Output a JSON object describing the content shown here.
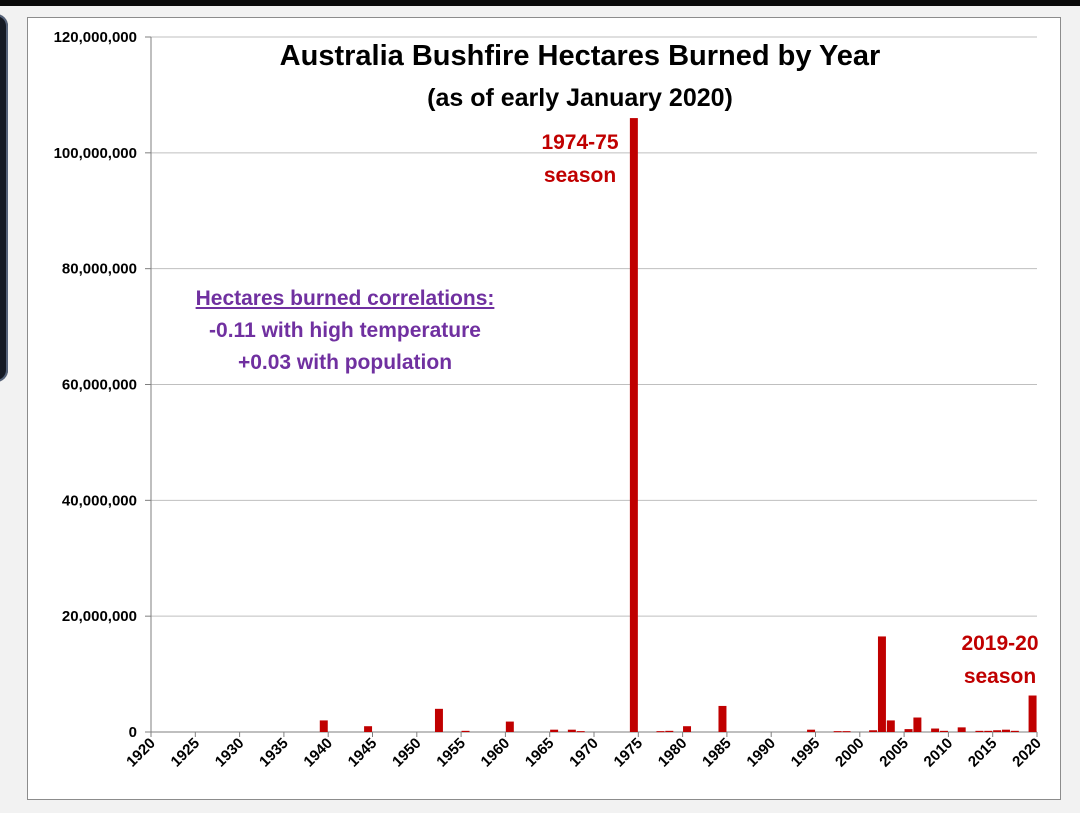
{
  "chart_data": {
    "type": "bar",
    "title": "Australia Bushfire Hectares Burned by Year",
    "subtitle": "(as of early January 2020)",
    "xlabel": "",
    "ylabel": "",
    "ylim": [
      0,
      120000000
    ],
    "yticks": [
      0,
      20000000,
      40000000,
      60000000,
      80000000,
      100000000,
      120000000
    ],
    "ytick_labels": [
      "0",
      "20,000,000",
      "40,000,000",
      "60,000,000",
      "80,000,000",
      "100,000,000",
      "120,000,000"
    ],
    "xlim": [
      1920,
      2020
    ],
    "xticks": [
      1920,
      1925,
      1930,
      1935,
      1940,
      1945,
      1950,
      1955,
      1960,
      1965,
      1970,
      1975,
      1980,
      1985,
      1990,
      1995,
      2000,
      2005,
      2010,
      2015,
      2020
    ],
    "grid": true,
    "legend": "none",
    "bar_color": "#c00000",
    "x": [
      1939,
      1944,
      1952,
      1955,
      1960,
      1965,
      1967,
      1968,
      1974,
      1977,
      1978,
      1980,
      1984,
      1994,
      1997,
      1998,
      2001,
      2002,
      2003,
      2005,
      2006,
      2008,
      2009,
      2011,
      2013,
      2014,
      2015,
      2016,
      2017,
      2019
    ],
    "values": [
      2000000,
      1000000,
      4000000,
      200000,
      1800000,
      400000,
      400000,
      150000,
      106000000,
      150000,
      200000,
      1000000,
      4500000,
      400000,
      150000,
      150000,
      300000,
      16500000,
      2000000,
      500000,
      2500000,
      600000,
      200000,
      800000,
      200000,
      200000,
      300000,
      400000,
      200000,
      6300000
    ],
    "annotations": [
      {
        "text": [
          "1974-75",
          "season"
        ],
        "year": 1974,
        "color": "#c00000"
      },
      {
        "text": [
          "2019-20",
          "season"
        ],
        "year": 2019,
        "color": "#c00000"
      }
    ],
    "text_box": {
      "heading": "Hectares burned correlations:",
      "lines": [
        "-0.11 with high temperature",
        "+0.03 with population"
      ],
      "color": "#7030a0"
    }
  }
}
